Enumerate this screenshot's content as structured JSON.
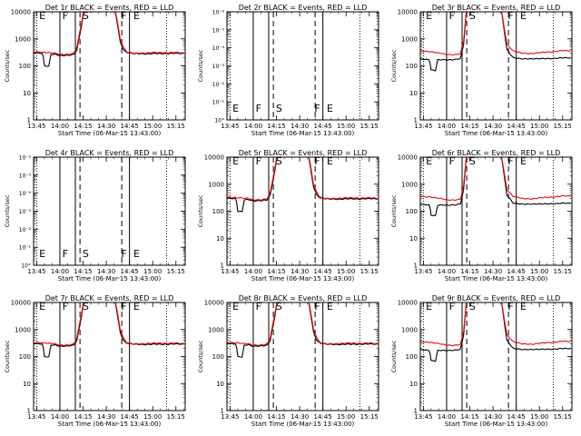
{
  "axis_common": {
    "xticks": [
      "13:45",
      "14:00",
      "14:15",
      "14:30",
      "14:45",
      "15:00",
      "15:15"
    ],
    "xlabel": "Start Time (06-Mar-15 13:43:00)",
    "ylabel": "Counts/sec",
    "ytick_labels_normal": [
      "1",
      "10",
      "100",
      "1000",
      "10000"
    ],
    "ytick_labels_tiny": [
      "10°",
      "10⁻¹",
      "10⁻²",
      "10⁻³",
      "10⁻⁴",
      "10⁻⁵",
      "10⁻⁶"
    ],
    "marker_labels": [
      "E",
      "F",
      "S",
      "F",
      "E"
    ]
  },
  "chart_data": [
    {
      "type": "line",
      "title": "Det 1r BLACK = Events, RED = LLD",
      "empty": false,
      "shape": "A",
      "ylim": [
        1,
        10000
      ],
      "yscale": "log",
      "series": [
        {
          "color": "#000000"
        },
        {
          "color": "#ff0000"
        }
      ]
    },
    {
      "type": "line",
      "title": "Det 2r BLACK = Events, RED = LLD",
      "empty": true,
      "ylim": [
        1e-06,
        1
      ],
      "yscale": "log",
      "series": []
    },
    {
      "type": "line",
      "title": "Det 3r BLACK = Events, RED = LLD",
      "empty": false,
      "shape": "B",
      "ylim": [
        1,
        10000
      ],
      "yscale": "log",
      "series": [
        {
          "color": "#000000"
        },
        {
          "color": "#ff0000"
        }
      ]
    },
    {
      "type": "line",
      "title": "Det 4r BLACK = Events, RED = LLD",
      "empty": true,
      "ylim": [
        1e-06,
        1
      ],
      "yscale": "log",
      "series": []
    },
    {
      "type": "line",
      "title": "Det 5r BLACK = Events, RED = LLD",
      "empty": false,
      "shape": "A",
      "ylim": [
        1,
        10000
      ],
      "yscale": "log",
      "series": [
        {
          "color": "#000000"
        },
        {
          "color": "#ff0000"
        }
      ]
    },
    {
      "type": "line",
      "title": "Det 6r BLACK = Events, RED = LLD",
      "empty": false,
      "shape": "B",
      "ylim": [
        1,
        10000
      ],
      "yscale": "log",
      "series": [
        {
          "color": "#000000"
        },
        {
          "color": "#ff0000"
        }
      ]
    },
    {
      "type": "line",
      "title": "Det 7r BLACK = Events, RED = LLD",
      "empty": false,
      "shape": "A",
      "ylim": [
        1,
        10000
      ],
      "yscale": "log",
      "series": [
        {
          "color": "#000000"
        },
        {
          "color": "#ff0000"
        }
      ]
    },
    {
      "type": "line",
      "title": "Det 8r BLACK = Events, RED = LLD",
      "empty": false,
      "shape": "A",
      "ylim": [
        1,
        10000
      ],
      "yscale": "log",
      "series": [
        {
          "color": "#000000"
        },
        {
          "color": "#ff0000"
        }
      ]
    },
    {
      "type": "line",
      "title": "Det 9r BLACK = Events, RED = LLD",
      "empty": false,
      "shape": "B",
      "ylim": [
        1,
        10000
      ],
      "yscale": "log",
      "series": [
        {
          "color": "#000000"
        },
        {
          "color": "#ff0000"
        }
      ]
    }
  ]
}
